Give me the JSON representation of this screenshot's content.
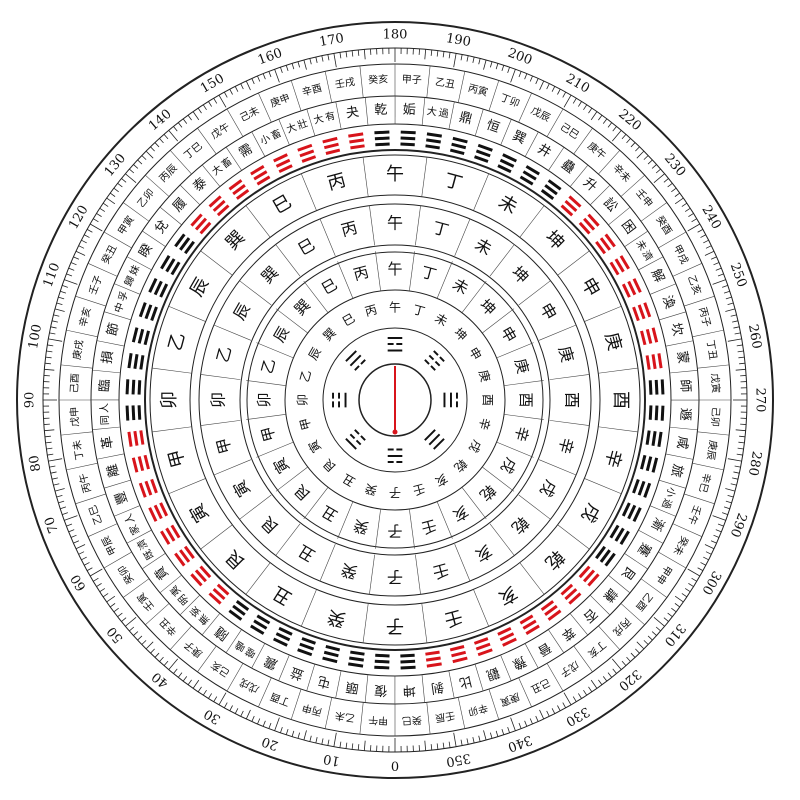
{
  "compass": {
    "degree_labels": [
      0,
      10,
      20,
      30,
      40,
      50,
      60,
      70,
      80,
      90,
      100,
      110,
      120,
      130,
      140,
      150,
      160,
      170,
      180,
      190,
      200,
      210,
      220,
      230,
      240,
      250,
      260,
      270,
      280,
      290,
      300,
      310,
      320,
      330,
      340,
      350
    ],
    "jiazi": [
      "甲子",
      "乙丑",
      "丙寅",
      "丁卯",
      "戊辰",
      "己巳",
      "庚午",
      "辛未",
      "壬申",
      "癸酉",
      "甲戌",
      "乙亥",
      "丙子",
      "丁丑",
      "戊寅",
      "己卯",
      "庚辰",
      "辛巳",
      "壬午",
      "癸未",
      "甲申",
      "乙酉",
      "丙戌",
      "丁亥",
      "戊子",
      "己丑",
      "庚寅",
      "辛卯",
      "壬辰",
      "癸巳",
      "甲午",
      "乙未",
      "丙申",
      "丁酉",
      "戊戌",
      "己亥",
      "庚子",
      "辛丑",
      "壬寅",
      "癸卯",
      "甲辰",
      "乙巳",
      "丙午",
      "丁未",
      "戊申",
      "己酉",
      "庚戌",
      "辛亥",
      "壬子",
      "癸丑",
      "甲寅",
      "乙卯",
      "丙辰",
      "丁巳",
      "戊午",
      "己未",
      "庚申",
      "辛酉",
      "壬戌",
      "癸亥"
    ],
    "hexagrams": [
      "乾",
      "姤",
      "大過",
      "鼎",
      "恒",
      "巽",
      "井",
      "蠱",
      "升",
      "訟",
      "困",
      "未濟",
      "解",
      "渙",
      "坎",
      "蒙",
      "師",
      "遯",
      "咸",
      "旅",
      "小過",
      "漸",
      "蹇",
      "艮",
      "謙",
      "否",
      "萃",
      "晉",
      "豫",
      "觀",
      "比",
      "剝",
      "坤",
      "復",
      "頤",
      "屯",
      "益",
      "震",
      "噬嗑",
      "隨",
      "無妄",
      "明夷",
      "賁",
      "既濟",
      "家人",
      "豐",
      "離",
      "革",
      "同人",
      "臨",
      "損",
      "節",
      "中孚",
      "歸妹",
      "睽",
      "兌",
      "履",
      "泰",
      "大畜",
      "需",
      "小畜",
      "大壯",
      "大有",
      "夬"
    ],
    "mountains": [
      "子",
      "癸",
      "丑",
      "艮",
      "寅",
      "甲",
      "卯",
      "乙",
      "辰",
      "巽",
      "巳",
      "丙",
      "午",
      "丁",
      "未",
      "坤",
      "申",
      "庚",
      "酉",
      "辛",
      "戌",
      "乾",
      "亥",
      "壬"
    ],
    "mountain_colors": [
      "#d8141b",
      "#d8141b",
      "#111111",
      "#111111",
      "#111111",
      "#d8141b",
      "#111111",
      "#d8141b",
      "#d8141b",
      "#111111",
      "#111111",
      "#111111",
      "#d8141b",
      "#111111",
      "#111111",
      "#d8141b",
      "#d8141b",
      "#111111",
      "#111111",
      "#111111",
      "#d8141b",
      "#d8141b",
      "#d8141b",
      "#d8141b"
    ],
    "trigrams": [
      "☵",
      "☶",
      "☳",
      "☴",
      "☲",
      "☷",
      "☱",
      "☰"
    ]
  }
}
